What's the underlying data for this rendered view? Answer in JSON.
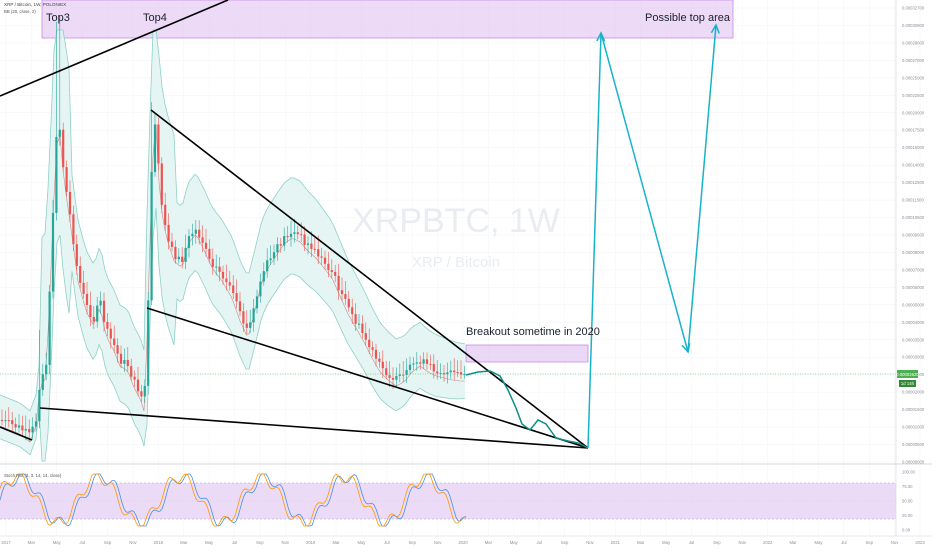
{
  "symbol_info": "XRP / Bitcoin, 1W, POLONIEX",
  "indicator_main": "BB (20, close, 2)",
  "indicator_sub": "Stoch RSI (3, 3, 14, 14, close)",
  "watermark": {
    "ticker": "XRPBTC, 1W",
    "name": "XRP / Bitcoin"
  },
  "annotations": {
    "top3": "Top3",
    "top4": "Top4",
    "possible_top": "Possible top area",
    "breakout": "Breakout sometime in 2020"
  },
  "price_tag": {
    "last": "0.00002620",
    "countdown": "1d 14h"
  },
  "colors": {
    "up": "#26a69a",
    "down": "#ef5350",
    "bb_fill": "#e0f3f1",
    "bb_line": "#8ed1c6",
    "zone": "#e2c6f2",
    "zone_border": "#c78ce6",
    "projection": "#17b3c9",
    "forecast": "#0c8f88",
    "trendline": "#000000",
    "last_price": "#4caf50",
    "stoch_k": "#4a90e2",
    "stoch_d": "#ff9800",
    "stoch_band": "#e9d5f5"
  },
  "chart_data": {
    "type": "candlestick",
    "title": "XRP / Bitcoin, 1W, POLONIEX",
    "x_tick_labels": [
      "2017",
      "Mar",
      "May",
      "Jul",
      "Sep",
      "Nov",
      "2018",
      "Mar",
      "May",
      "Jul",
      "Sep",
      "Nov",
      "2019",
      "Mar",
      "May",
      "Jul",
      "Sep",
      "Nov",
      "2020",
      "Mar",
      "May",
      "Jul",
      "Sep",
      "Nov",
      "2021",
      "Mar",
      "May",
      "Jul",
      "Sep",
      "Nov",
      "2022",
      "Mar",
      "May",
      "Jul",
      "Sep",
      "Nov",
      "2023"
    ],
    "y_tick_labels": [
      "0.00032700",
      "0.00030900",
      "0.00028000",
      "0.00027000",
      "0.00025000",
      "0.00022500",
      "0.00020000",
      "0.00017500",
      "0.00015000",
      "0.00014000",
      "0.00012500",
      "0.00011500",
      "0.00010500",
      "0.00009500",
      "0.00008000",
      "0.00007000",
      "0.00006000",
      "0.00005000",
      "0.00004000",
      "0.00003500",
      "0.00003000",
      "0.00002500",
      "0.00002000",
      "0.00001500",
      "0.00001000",
      "0.00000500",
      "0.00000000"
    ],
    "stoch_axis_labels": [
      "100.00",
      "75.00",
      "50.00",
      "25.00",
      "0.00"
    ],
    "last_price": 2.62e-05,
    "regions": {
      "possible_top_area": {
        "x_from": "2019-01",
        "x_to": "2022-09",
        "price_from": 0.000295,
        "price_to": 0.000327
      },
      "breakout_zone": {
        "x_from": "2019-12",
        "x_to": "2020-09",
        "price_from": 3e-05,
        "price_to": 3.8e-05
      }
    },
    "series": [
      {
        "name": "XRPBTC weekly close",
        "months": [
          "2017-01",
          "2017-03",
          "2017-05",
          "2017-07",
          "2017-09",
          "2017-11",
          "2018-01",
          "2018-03",
          "2018-05",
          "2018-07",
          "2018-09",
          "2018-11",
          "2019-01",
          "2019-03",
          "2019-05",
          "2019-07",
          "2019-09",
          "2019-11",
          "2020-01"
        ],
        "values": [
          6e-06,
          1.2e-05,
          0.00024,
          0.00017,
          9.8e-05,
          8e-05,
          0.00028,
          0.00012,
          0.00011,
          9.5e-05,
          9.8e-05,
          9e-05,
          8.8e-05,
          7.5e-05,
          5.5e-05,
          3.8e-05,
          2.7e-05,
          2.8e-05,
          2.7e-05
        ]
      },
      {
        "name": "Projection",
        "months": [
          "2020-02",
          "2020-04",
          "2020-06",
          "2020-09",
          "2020-12",
          "2021-06",
          "2021-10"
        ],
        "values": [
          2.7e-05,
          1.9e-05,
          1.2e-05,
          3e-06,
          0.00031,
          3.2e-05,
          0.00031
        ]
      }
    ],
    "grid": true,
    "legend": "top-left"
  }
}
